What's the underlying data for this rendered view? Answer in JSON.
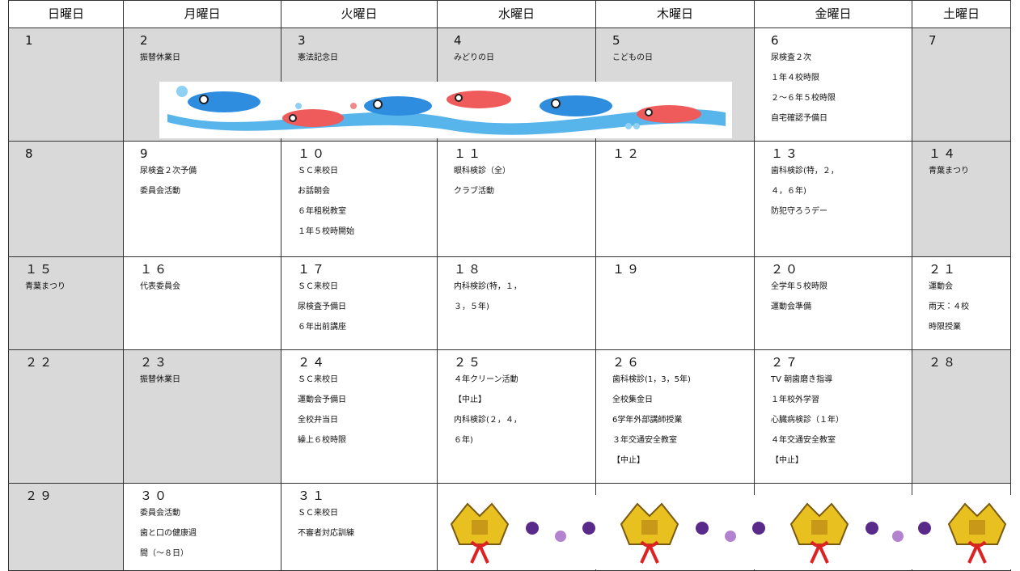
{
  "header": {
    "days": [
      "日曜日",
      "月曜日",
      "火曜日",
      "水曜日",
      "木曜日",
      "金曜日",
      "土曜日"
    ]
  },
  "weeks": [
    {
      "cells": [
        {
          "day": "1",
          "shaded": true,
          "lines": []
        },
        {
          "day": "2",
          "shaded": true,
          "lines": [
            "振替休業日"
          ]
        },
        {
          "day": "3",
          "shaded": true,
          "lines": [
            "憲法記念日"
          ]
        },
        {
          "day": "4",
          "shaded": true,
          "lines": [
            "みどりの日"
          ]
        },
        {
          "day": "5",
          "shaded": true,
          "lines": [
            "こどもの日"
          ]
        },
        {
          "day": "6",
          "shaded": false,
          "lines": [
            "尿検査２次",
            "１年４校時限",
            "２～６年５校時限",
            "自宅確認予備日"
          ]
        },
        {
          "day": "7",
          "shaded": true,
          "lines": []
        }
      ]
    },
    {
      "cells": [
        {
          "day": "8",
          "shaded": true,
          "lines": []
        },
        {
          "day": "9",
          "shaded": false,
          "lines": [
            "尿検査２次予備",
            "委員会活動"
          ]
        },
        {
          "day": "１０",
          "shaded": false,
          "lines": [
            "ＳＣ来校日",
            "お話朝会",
            "６年租税教室",
            "１年５校時開始"
          ]
        },
        {
          "day": "１１",
          "shaded": false,
          "lines": [
            "眼科検診（全）",
            "クラブ活動"
          ]
        },
        {
          "day": "１２",
          "shaded": false,
          "lines": []
        },
        {
          "day": "１３",
          "shaded": false,
          "lines": [
            "歯科検診(特，２，",
            "４，６年)",
            "防犯守ろうデー"
          ]
        },
        {
          "day": "１４",
          "shaded": true,
          "lines": [
            "青葉まつり"
          ]
        }
      ]
    },
    {
      "cells": [
        {
          "day": "１５",
          "shaded": true,
          "lines": [
            "青葉まつり"
          ]
        },
        {
          "day": "１６",
          "shaded": false,
          "lines": [
            "代表委員会"
          ]
        },
        {
          "day": "１７",
          "shaded": false,
          "lines": [
            "ＳＣ来校日",
            "尿検査予備日",
            "６年出前講座"
          ]
        },
        {
          "day": "１８",
          "shaded": false,
          "lines": [
            "内科検診(特，１，",
            "３，５年)"
          ]
        },
        {
          "day": "１９",
          "shaded": false,
          "lines": []
        },
        {
          "day": "２０",
          "shaded": false,
          "lines": [
            "全学年５校時限",
            "運動会準備"
          ]
        },
        {
          "day": "２１",
          "shaded": false,
          "lines": [
            "運動会",
            "雨天：４校",
            "時限授業"
          ]
        }
      ]
    },
    {
      "cells": [
        {
          "day": "２２",
          "shaded": true,
          "lines": []
        },
        {
          "day": "２３",
          "shaded": true,
          "lines": [
            "振替休業日"
          ]
        },
        {
          "day": "２４",
          "shaded": false,
          "lines": [
            "ＳＣ来校日",
            "運動会予備日",
            "全校弁当日",
            "繰上６校時限"
          ]
        },
        {
          "day": "２５",
          "shaded": false,
          "lines": [
            "４年クリーン活動",
            "【中止】",
            "内科検診(２，４，",
            "６年)"
          ]
        },
        {
          "day": "２６",
          "shaded": false,
          "lines": [
            "歯科検診(1，3，5年)",
            "全校集金日",
            "6学年外部講師授業",
            "３年交通安全教室",
            "【中止】"
          ]
        },
        {
          "day": "２７",
          "shaded": false,
          "lines": [
            "TV 朝歯磨き指導",
            "１年校外学習",
            "心臓病検診（１年）",
            "４年交通安全教室",
            "【中止】"
          ]
        },
        {
          "day": "２８",
          "shaded": true,
          "lines": []
        }
      ]
    },
    {
      "cells": [
        {
          "day": "２９",
          "shaded": true,
          "lines": []
        },
        {
          "day": "３０",
          "shaded": false,
          "lines": [
            "委員会活動",
            "歯と口の健康週",
            "間（～８日）"
          ]
        },
        {
          "day": "３１",
          "shaded": false,
          "lines": [
            "ＳＣ来校日",
            "不審者対応訓練"
          ]
        }
      ]
    }
  ]
}
